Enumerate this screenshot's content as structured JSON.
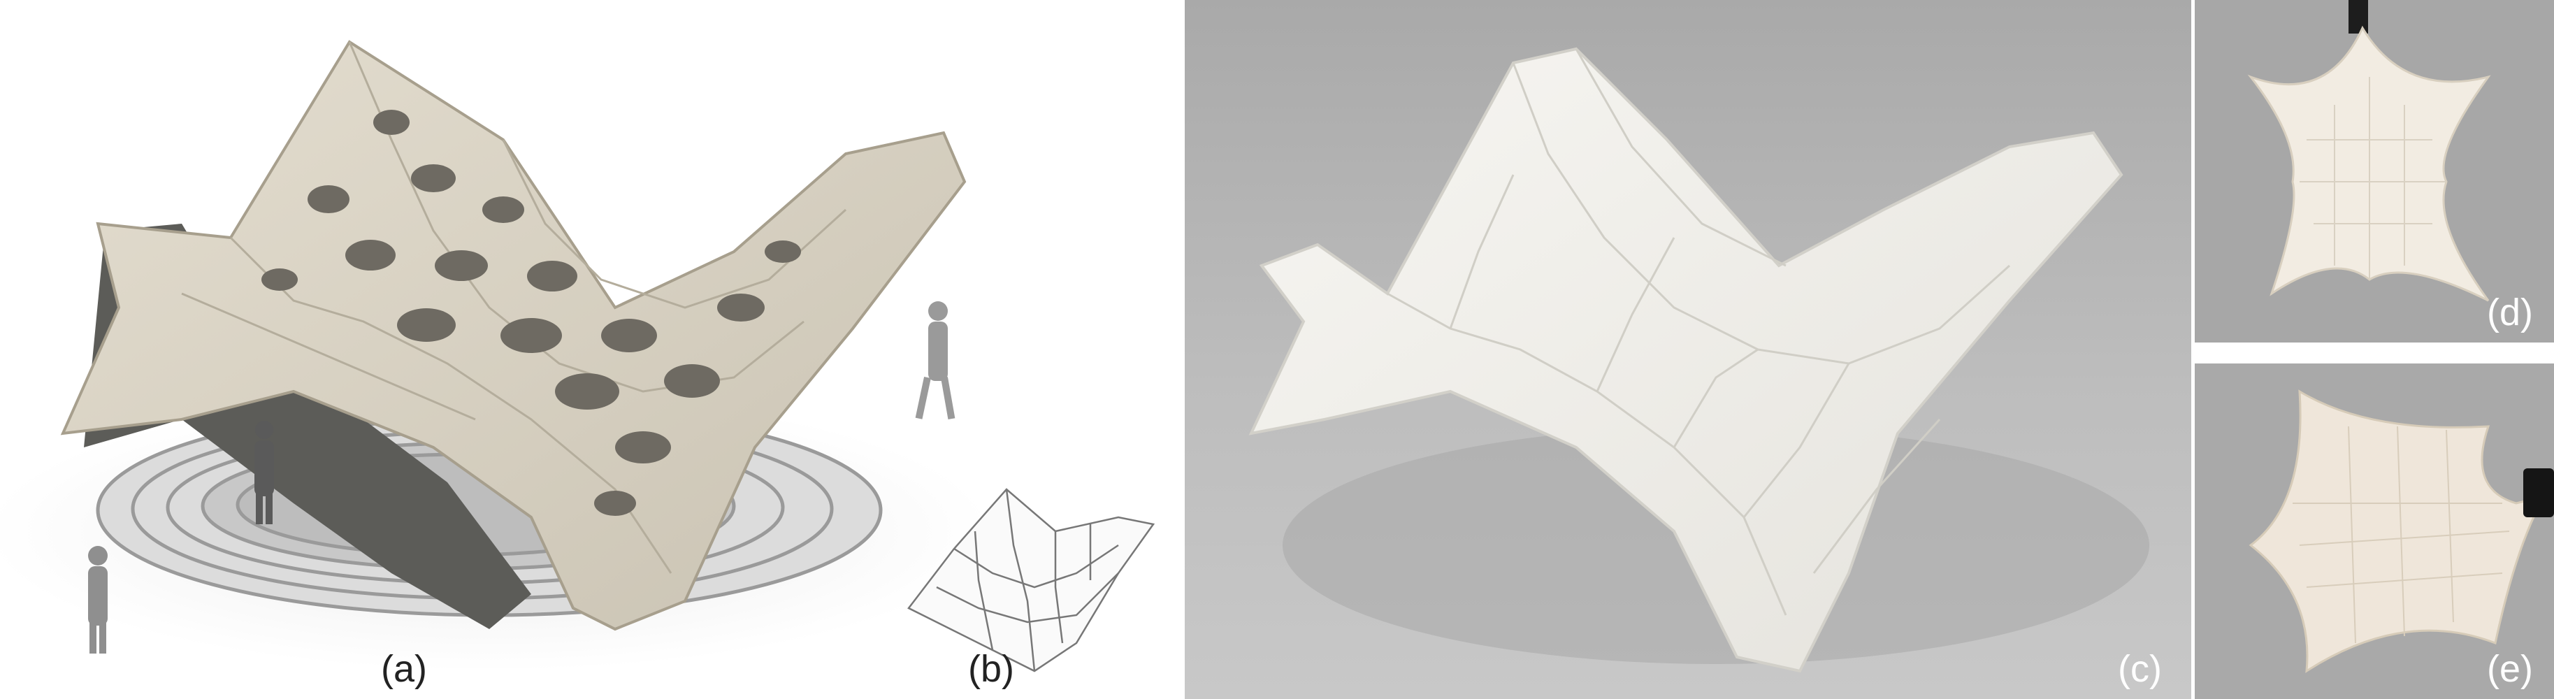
{
  "figure": {
    "panels": [
      {
        "id": "a",
        "label": "(a)"
      },
      {
        "id": "b",
        "label": "(b)"
      },
      {
        "id": "c",
        "label": "(c)"
      },
      {
        "id": "d",
        "label": "(d)"
      },
      {
        "id": "e",
        "label": "(e)"
      }
    ]
  },
  "colors": {
    "shell_render": "#d8d2c3",
    "shell_print": "#f1efe9",
    "photo_background": "#b9b9b9",
    "floor_render": "#f2f2f2"
  }
}
